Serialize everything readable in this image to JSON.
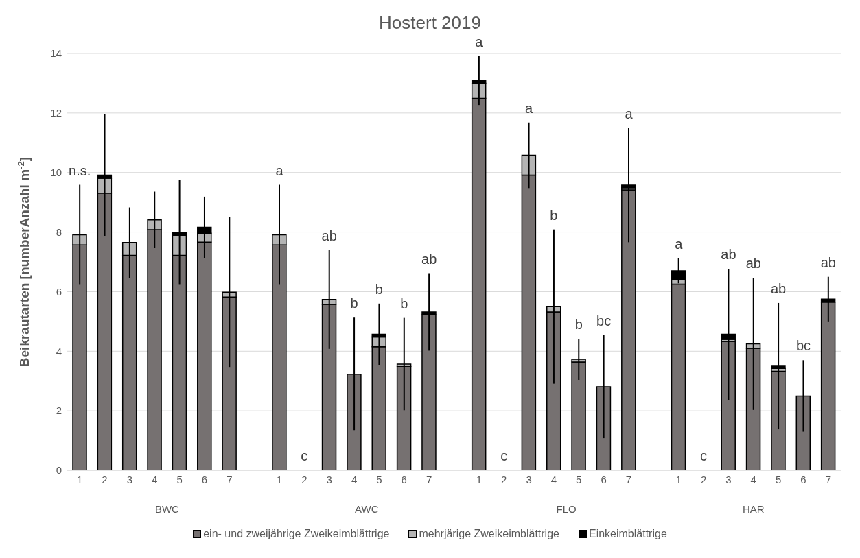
{
  "chart_data": {
    "type": "bar",
    "title": "Hostert 2019",
    "ylabel": "Beikrautarten [numberAnzahl m$^{-2}$]",
    "stacked": true,
    "ylim": [
      0,
      14
    ],
    "yticks": [
      0,
      2,
      4,
      6,
      8,
      10,
      12,
      14
    ],
    "grid": "y",
    "legend": "bottom",
    "categories": [
      "1",
      "2",
      "3",
      "4",
      "5",
      "6",
      "7",
      null,
      "1",
      "2",
      "3",
      "4",
      "5",
      "6",
      "7",
      null,
      "1",
      "2",
      "3",
      "4",
      "5",
      "6",
      "7",
      null,
      "1",
      "2",
      "3",
      "4",
      "5",
      "6",
      "7"
    ],
    "series": [
      {
        "name": "ein- und zweijährige Zweikeimblättrige",
        "color": "#767171",
        "values": [
          7.57,
          9.31,
          7.22,
          8.08,
          7.22,
          7.66,
          5.82,
          null,
          7.57,
          0,
          5.57,
          3.23,
          4.15,
          3.48,
          5.22,
          null,
          12.49,
          0,
          9.91,
          5.32,
          3.64,
          2.81,
          9.42,
          null,
          6.25,
          0,
          4.33,
          4.1,
          3.33,
          2.5,
          5.65
        ]
      },
      {
        "name": "mehrjärige Zweikeimblättrige",
        "color": "#b4b4b4",
        "values": [
          0.34,
          0.5,
          0.43,
          0.33,
          0.67,
          0.3,
          0.16,
          null,
          0.34,
          0,
          0.17,
          0,
          0.33,
          0.09,
          0,
          null,
          0.51,
          0,
          0.67,
          0.18,
          0.09,
          0,
          0.07,
          null,
          0.15,
          0,
          0.07,
          0.15,
          0.09,
          0,
          0
        ]
      },
      {
        "name": "Einkeimblättrige",
        "color": "#000000",
        "values": [
          0,
          0.1,
          0,
          0,
          0.1,
          0.2,
          0,
          null,
          0,
          0,
          0,
          0,
          0.09,
          0,
          0.1,
          null,
          0.09,
          0,
          0,
          0,
          0,
          0,
          0.09,
          null,
          0.3,
          0,
          0.17,
          0,
          0.08,
          0,
          0.1
        ],
        "errors": [
          1.68,
          2.05,
          1.18,
          0.95,
          1.76,
          1.03,
          2.53,
          null,
          1.68,
          null,
          1.66,
          1.9,
          1.03,
          1.55,
          1.3,
          null,
          0.82,
          null,
          1.1,
          2.59,
          0.69,
          1.73,
          1.92,
          null,
          0.42,
          null,
          2.2,
          2.22,
          2.12,
          1.2,
          0.75
        ]
      }
    ],
    "annotations": [
      "n.s.",
      "a",
      "c",
      "ab",
      "b",
      "b",
      "b",
      "ab",
      "a",
      "c",
      "a",
      "b",
      "b",
      "bc",
      "a",
      "a",
      "c",
      "ab",
      "ab",
      "ab",
      "bc",
      "ab",
      "BWC",
      "AWC",
      "FLO",
      "HAR"
    ]
  }
}
